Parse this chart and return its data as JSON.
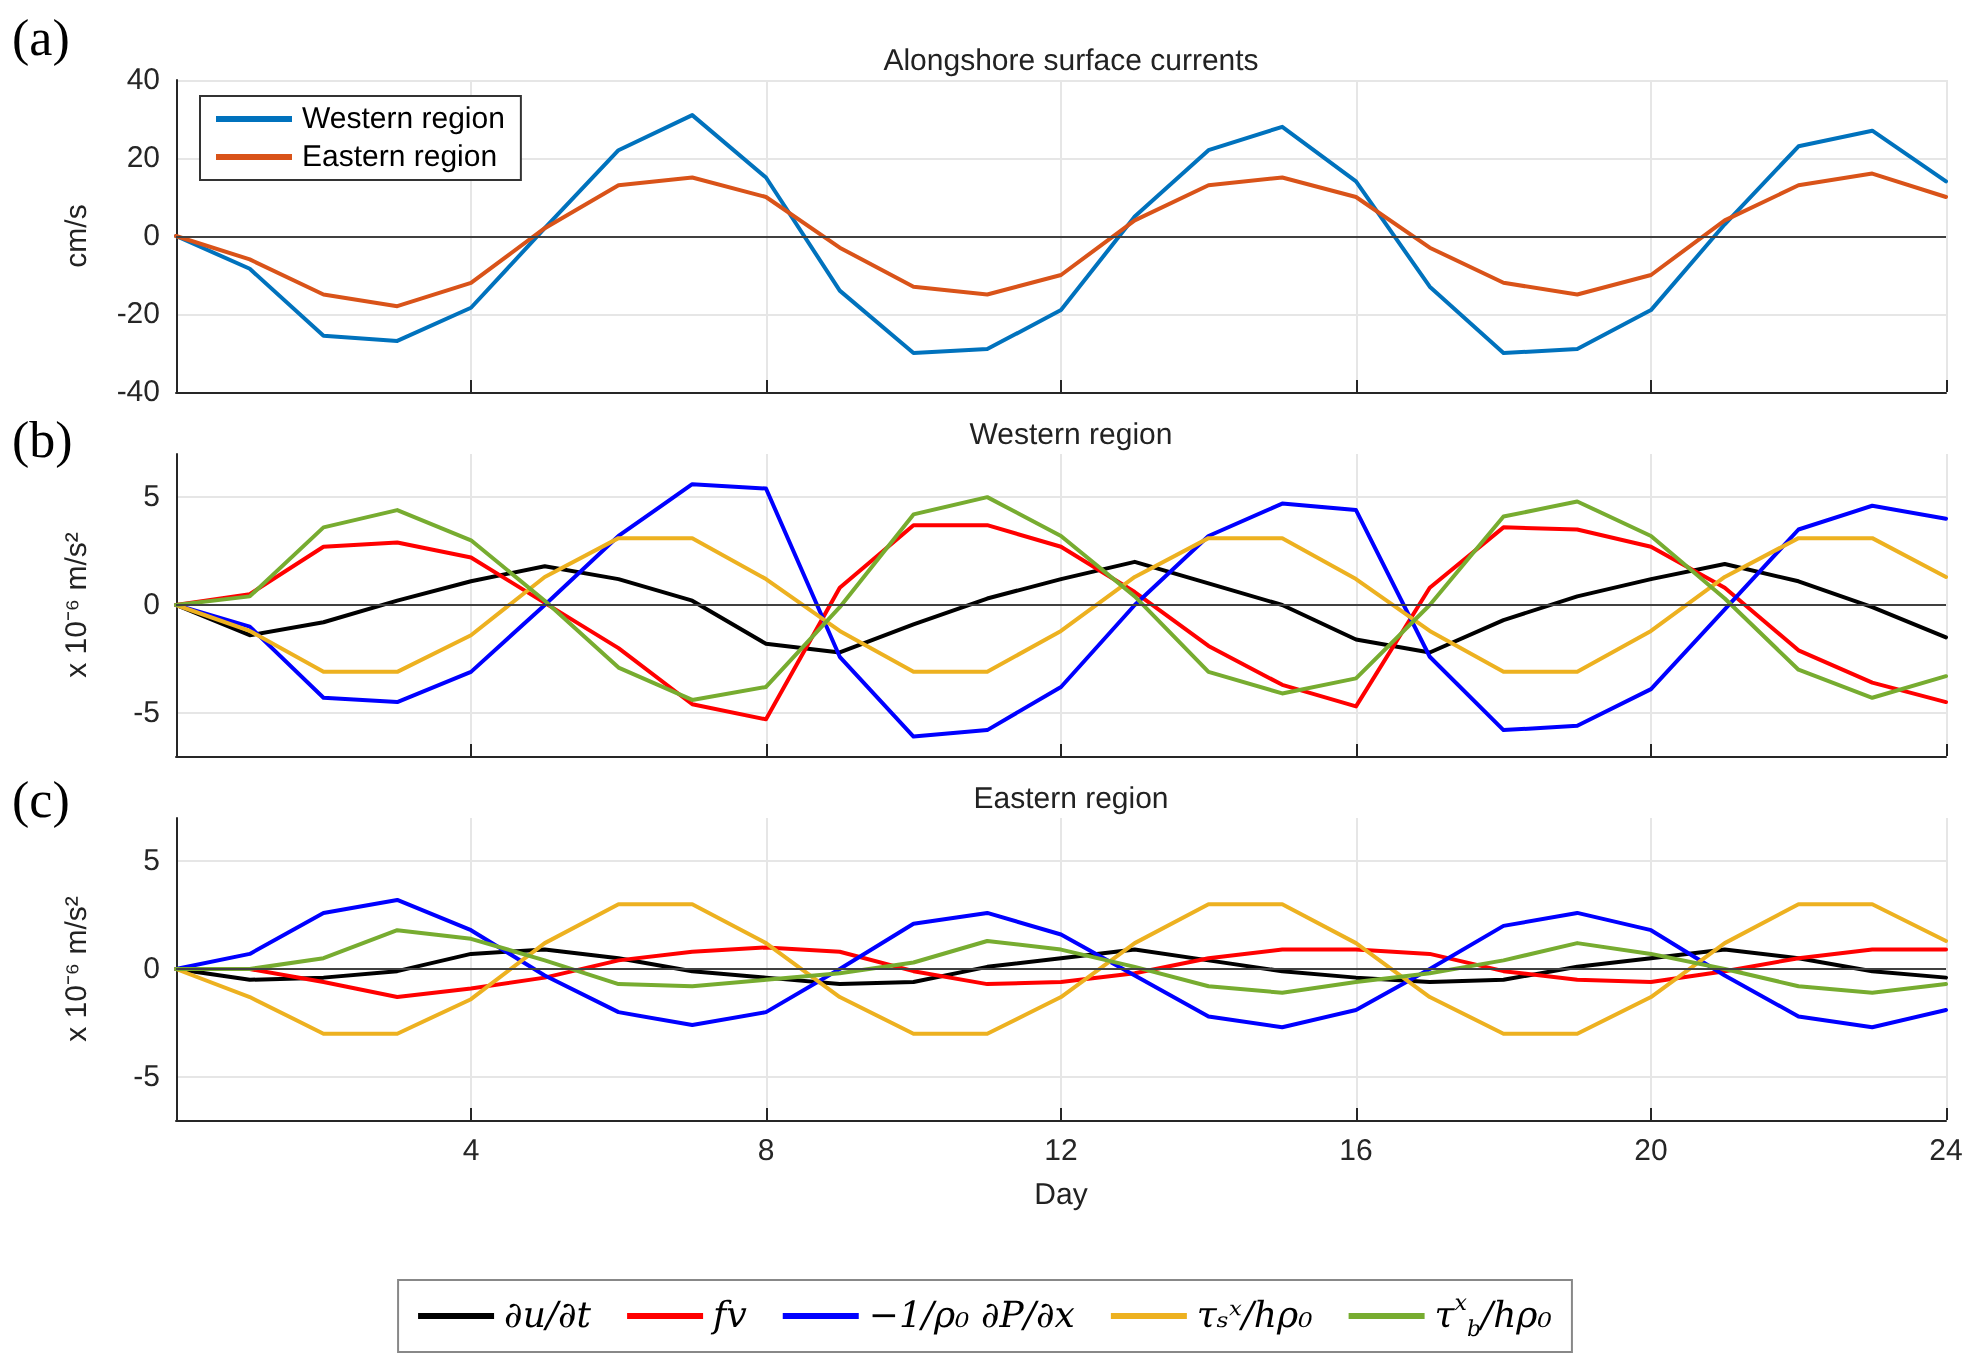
{
  "chart_data": [
    {
      "type": "line",
      "title": "Alongshore surface currents",
      "ylabel": "cm/s",
      "annotations": [
        "(a)"
      ],
      "x": [
        0,
        1,
        2,
        3,
        4,
        5,
        6,
        7,
        8,
        9,
        10,
        11,
        12,
        13,
        14,
        15,
        16,
        17,
        18,
        19,
        20,
        21,
        22,
        23,
        24
      ],
      "xlim": [
        0,
        24
      ],
      "xticks": [
        4,
        8,
        12,
        16,
        20,
        24
      ],
      "ylim": [
        -40,
        40
      ],
      "yticks": [
        -40,
        -20,
        0,
        20,
        40
      ],
      "tick_labels": "y",
      "grid": true,
      "legend": "top left",
      "marker": "none",
      "line_style": "solid",
      "ref_lines": [
        {
          "axis": "y",
          "value": 0,
          "color": "#404040"
        }
      ],
      "series": [
        {
          "name": "Western region",
          "color": "#0072bd",
          "values": [
            0,
            -8.4,
            -25.6,
            -26.9,
            -18.4,
            2,
            22,
            31,
            15,
            -14,
            -30,
            -29,
            -19,
            5,
            22,
            28,
            14,
            -13,
            -30,
            -29,
            -19,
            3,
            23,
            27,
            14
          ]
        },
        {
          "name": "Eastern region",
          "color": "#d95319",
          "values": [
            0,
            -6,
            -15,
            -18,
            -12,
            2,
            13,
            15,
            10,
            -3,
            -13,
            -15,
            -10,
            4,
            13,
            15,
            10,
            -3,
            -12,
            -15,
            -10,
            4,
            13,
            16,
            10
          ]
        }
      ]
    },
    {
      "type": "line",
      "title": "Western region",
      "ylabel": "x 10⁻⁶ m/s²",
      "annotations": [
        "(b)"
      ],
      "x": [
        0,
        1,
        2,
        3,
        4,
        5,
        6,
        7,
        8,
        9,
        10,
        11,
        12,
        13,
        14,
        15,
        16,
        17,
        18,
        19,
        20,
        21,
        22,
        23,
        24
      ],
      "xlim": [
        0,
        24
      ],
      "xticks": [
        4,
        8,
        12,
        16,
        20,
        24
      ],
      "ylim": [
        -7,
        7
      ],
      "yticks": [
        -5,
        0,
        5
      ],
      "tick_labels": "y",
      "grid": true,
      "marker": "none",
      "line_style": "solid",
      "ref_lines": [
        {
          "axis": "y",
          "value": 0,
          "color": "#404040"
        }
      ],
      "series": [
        {
          "color": "#000000",
          "values": [
            0,
            -1.4,
            -0.8,
            0.2,
            1.1,
            1.8,
            1.2,
            0.2,
            -1.8,
            -2.2,
            -0.9,
            0.3,
            1.2,
            2.0,
            1.0,
            0,
            -1.6,
            -2.2,
            -0.7,
            0.4,
            1.2,
            1.9,
            1.1,
            -0.1,
            -1.5
          ]
        },
        {
          "color": "#ff0000",
          "values": [
            0,
            0.5,
            2.7,
            2.9,
            2.2,
            0.1,
            -2.0,
            -4.6,
            -5.3,
            0.8,
            3.7,
            3.7,
            2.7,
            0.6,
            -1.9,
            -3.7,
            -4.7,
            0.8,
            3.6,
            3.5,
            2.7,
            0.8,
            -2.1,
            -3.6,
            -4.5
          ]
        },
        {
          "color": "#0000ff",
          "values": [
            0,
            -1.0,
            -4.3,
            -4.5,
            -3.1,
            0,
            3.2,
            5.6,
            5.4,
            -2.4,
            -6.1,
            -5.8,
            -3.8,
            0,
            3.2,
            4.7,
            4.4,
            -2.4,
            -5.8,
            -5.6,
            -3.9,
            -0.2,
            3.5,
            4.6,
            4.0
          ]
        },
        {
          "color": "#edb120",
          "values": [
            0,
            -1.2,
            -3.1,
            -3.1,
            -1.4,
            1.3,
            3.1,
            3.1,
            1.2,
            -1.2,
            -3.1,
            -3.1,
            -1.2,
            1.3,
            3.1,
            3.1,
            1.2,
            -1.2,
            -3.1,
            -3.1,
            -1.2,
            1.3,
            3.1,
            3.1,
            1.3
          ]
        },
        {
          "color": "#77ac30",
          "values": [
            0,
            0.4,
            3.6,
            4.4,
            3.0,
            0.2,
            -2.9,
            -4.4,
            -3.8,
            -0.1,
            4.2,
            5.0,
            3.2,
            0.4,
            -3.1,
            -4.1,
            -3.4,
            0,
            4.1,
            4.8,
            3.2,
            0.3,
            -3.0,
            -4.3,
            -3.3
          ]
        }
      ]
    },
    {
      "type": "line",
      "title": "Eastern region",
      "xlabel": "Day",
      "ylabel": "x 10⁻⁶ m/s²",
      "annotations": [
        "(c)"
      ],
      "x": [
        0,
        1,
        2,
        3,
        4,
        5,
        6,
        7,
        8,
        9,
        10,
        11,
        12,
        13,
        14,
        15,
        16,
        17,
        18,
        19,
        20,
        21,
        22,
        23,
        24
      ],
      "xlim": [
        0,
        24
      ],
      "xticks": [
        4,
        8,
        12,
        16,
        20,
        24
      ],
      "ylim": [
        -7,
        7
      ],
      "yticks": [
        -5,
        0,
        5
      ],
      "grid": true,
      "legend": "bottom",
      "marker": "none",
      "line_style": "solid",
      "ref_lines": [
        {
          "axis": "y",
          "value": 0,
          "color": "#404040"
        }
      ],
      "series": [
        {
          "name": "∂u/∂t",
          "color": "#000000",
          "values": [
            0,
            -0.5,
            -0.4,
            -0.1,
            0.7,
            0.9,
            0.5,
            -0.1,
            -0.4,
            -0.7,
            -0.6,
            0.1,
            0.5,
            0.9,
            0.4,
            -0.1,
            -0.4,
            -0.6,
            -0.5,
            0.1,
            0.5,
            0.9,
            0.5,
            -0.1,
            -0.4
          ]
        },
        {
          "name": "fv",
          "color": "#ff0000",
          "values": [
            0,
            0,
            -0.6,
            -1.3,
            -0.9,
            -0.4,
            0.4,
            0.8,
            1.0,
            0.8,
            -0.1,
            -0.7,
            -0.6,
            -0.2,
            0.5,
            0.9,
            0.9,
            0.7,
            -0.1,
            -0.5,
            -0.6,
            -0.1,
            0.5,
            0.9,
            0.9
          ]
        },
        {
          "name": "−1/ρ₀ ∂P/∂x",
          "color": "#0000ff",
          "values": [
            0,
            0.7,
            2.6,
            3.2,
            1.8,
            -0.3,
            -2.0,
            -2.6,
            -2.0,
            0,
            2.1,
            2.6,
            1.6,
            -0.3,
            -2.2,
            -2.7,
            -1.9,
            0,
            2.0,
            2.6,
            1.8,
            -0.3,
            -2.2,
            -2.7,
            -1.9
          ]
        },
        {
          "name": "τₛˣ/hρ₀",
          "color": "#edb120",
          "values": [
            0,
            -1.3,
            -3.0,
            -3.0,
            -1.4,
            1.2,
            3.0,
            3.0,
            1.2,
            -1.3,
            -3.0,
            -3.0,
            -1.3,
            1.2,
            3.0,
            3.0,
            1.2,
            -1.3,
            -3.0,
            -3.0,
            -1.3,
            1.2,
            3.0,
            3.0,
            1.3
          ]
        },
        {
          "name": "τ$^{x}$$_{b}$/hρ₀",
          "color": "#77ac30",
          "values": [
            0,
            0,
            0.5,
            1.8,
            1.4,
            0.4,
            -0.7,
            -0.8,
            -0.5,
            -0.2,
            0.3,
            1.3,
            0.9,
            0.1,
            -0.8,
            -1.1,
            -0.6,
            -0.2,
            0.4,
            1.2,
            0.7,
            0,
            -0.8,
            -1.1,
            -0.7
          ]
        }
      ]
    }
  ]
}
